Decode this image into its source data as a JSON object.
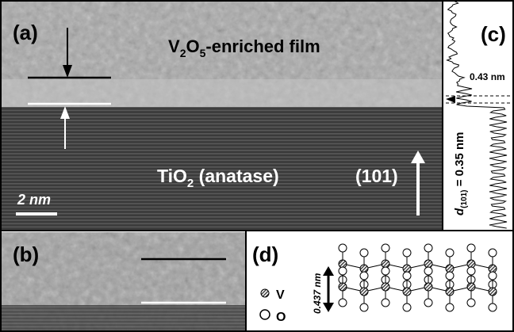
{
  "panels": {
    "a": {
      "label": "(a)",
      "film_label": [
        "V",
        "2",
        "O",
        "5",
        "-enriched film"
      ],
      "substrate_label": [
        "TiO",
        "2",
        " (anatase)"
      ],
      "plane_label": "(101)",
      "scale_bar": "2 nm"
    },
    "b": {
      "label": "(b)"
    },
    "c": {
      "label": "(c)",
      "film_spacing": "0.43 nm",
      "d_spacing": [
        "d",
        "(101)",
        " = 0.35 nm"
      ]
    },
    "d": {
      "label": "(d)",
      "layer_spacing": "0.437 nm",
      "legend": [
        "V",
        "O"
      ]
    }
  }
}
